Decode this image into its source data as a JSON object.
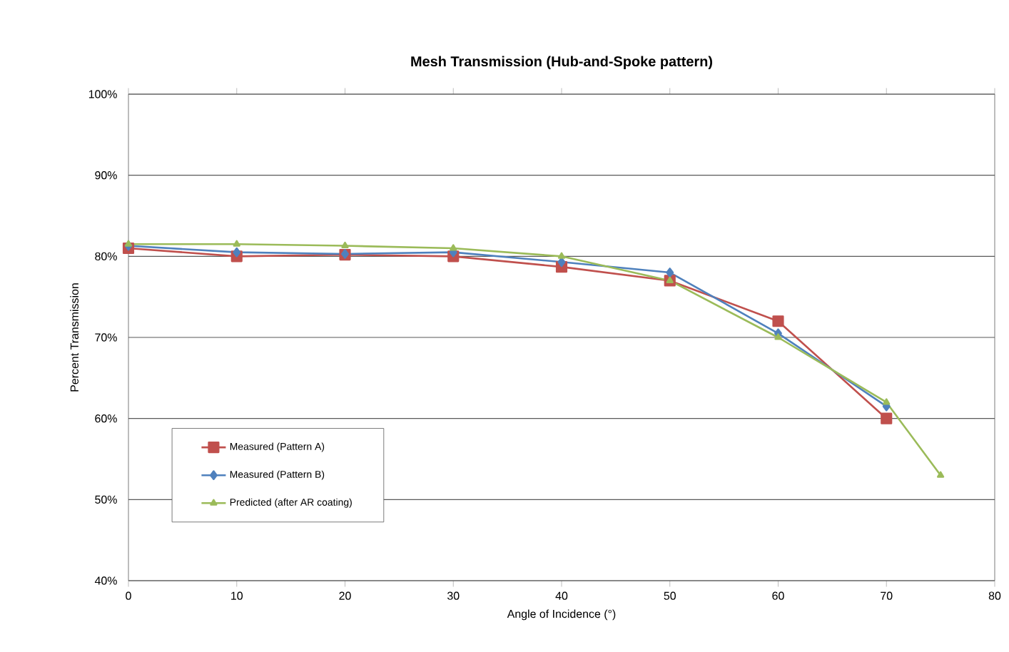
{
  "chart_data": {
    "type": "line",
    "title": "Mesh Transmission (Hub-and-Spoke pattern)",
    "xlabel": "Angle of Incidence (°)",
    "ylabel": "Percent Transmission",
    "x": [
      0,
      10,
      20,
      30,
      40,
      50,
      60,
      70
    ],
    "series": [
      {
        "name": "Measured (Pattern A)",
        "color": "#c0504d",
        "marker": "square",
        "values": [
          81,
          80,
          80.2,
          80,
          78.7,
          77,
          72,
          60
        ]
      },
      {
        "name": "Measured (Pattern B)",
        "color": "#4f81bd",
        "marker": "diamond",
        "values": [
          81.3,
          80.5,
          80.3,
          80.5,
          79.3,
          78,
          70.5,
          61.5
        ]
      },
      {
        "name": "Predicted (after AR coating)",
        "color": "#9bbb59",
        "marker": "triangle",
        "x": [
          0,
          10,
          20,
          30,
          40,
          50,
          60,
          70,
          75
        ],
        "values": [
          81.5,
          81.5,
          81.3,
          81,
          80,
          77,
          70,
          62,
          53
        ]
      }
    ],
    "xlim": [
      0,
      80
    ],
    "xticks": [
      0,
      10,
      20,
      30,
      40,
      50,
      60,
      70,
      80
    ],
    "ylim": [
      40,
      100
    ],
    "yticks": [
      {
        "value": 40,
        "label": "40%"
      },
      {
        "value": 50,
        "label": "50%"
      },
      {
        "value": 60,
        "label": "60%"
      },
      {
        "value": 70,
        "label": "70%"
      },
      {
        "value": 80,
        "label": "80%"
      },
      {
        "value": 90,
        "label": "90%"
      },
      {
        "value": 100,
        "label": "100%"
      }
    ],
    "grid": "y",
    "legend": "left",
    "line_style": "solid"
  }
}
